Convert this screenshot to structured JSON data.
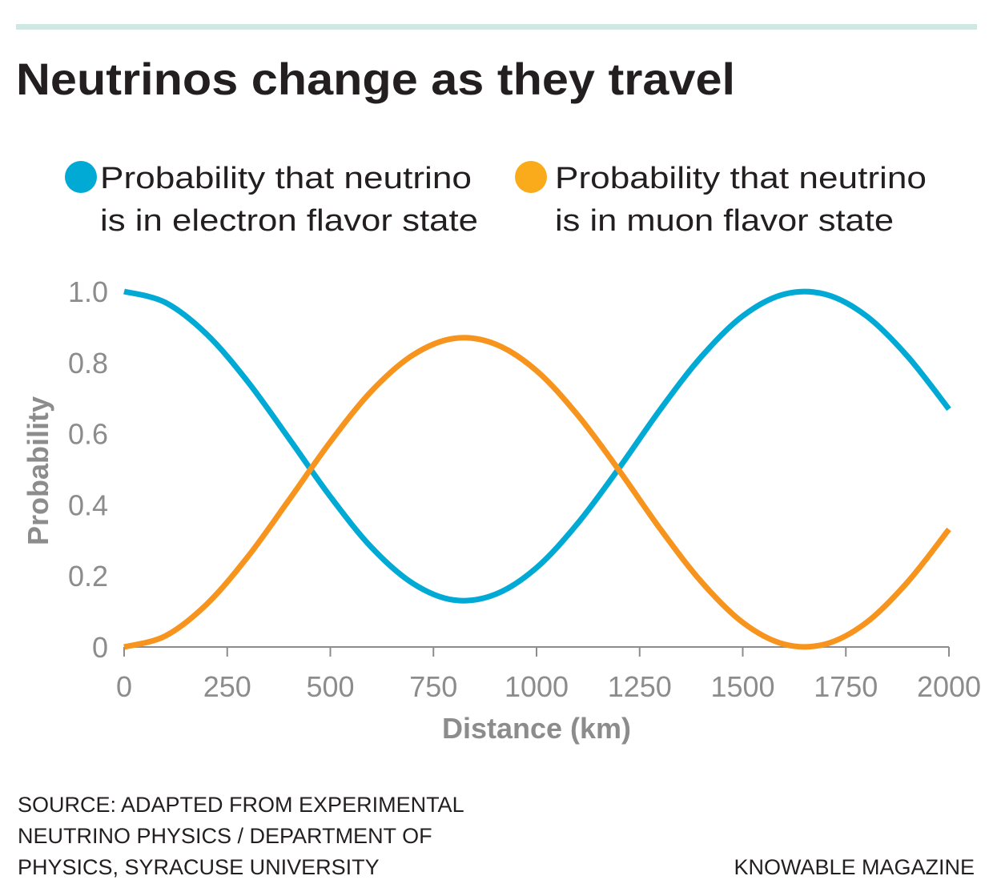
{
  "title": "Neutrinos change as they travel",
  "colors": {
    "top_rule": "#cfe8e3",
    "electron": "#00aad4",
    "muon_line": "#f7941d",
    "muon_dot": "#f9ab1b",
    "axis": "#8c8c8c"
  },
  "legend": [
    {
      "line1": "Probability that neutrino",
      "line2": "is in electron flavor state"
    },
    {
      "line1": "Probability that neutrino",
      "line2": "is in muon flavor state"
    }
  ],
  "chart_data": {
    "type": "line",
    "title": "Neutrinos change as they travel",
    "xlabel": "Distance (km)",
    "ylabel": "Probability",
    "xlim": [
      0,
      2000
    ],
    "ylim": [
      0,
      1.0
    ],
    "xticks": [
      "0",
      "250",
      "500",
      "750",
      "1000",
      "1250",
      "1500",
      "1750",
      "2000"
    ],
    "xtick_values": [
      0,
      250,
      500,
      750,
      1000,
      1250,
      1500,
      1750,
      2000
    ],
    "yticks": [
      "0",
      "0.2",
      "0.4",
      "0.6",
      "0.8",
      "1.0"
    ],
    "ytick_values": [
      0,
      0.2,
      0.4,
      0.6,
      0.8,
      1.0
    ],
    "grid": false,
    "legend_placement": "top",
    "x": [
      0,
      100,
      200,
      300,
      400,
      500,
      600,
      700,
      800,
      900,
      1000,
      1100,
      1200,
      1300,
      1400,
      1500,
      1600,
      1700,
      1800,
      1900,
      2000
    ],
    "series": [
      {
        "name": "Probability that neutrino is in electron flavor state",
        "color": "#00aad4",
        "values": [
          1.0,
          0.969,
          0.88,
          0.746,
          0.586,
          0.423,
          0.28,
          0.179,
          0.132,
          0.148,
          0.223,
          0.348,
          0.503,
          0.668,
          0.817,
          0.931,
          0.992,
          0.992,
          0.931,
          0.817,
          0.669
        ]
      },
      {
        "name": "Probability that neutrino is in muon flavor state",
        "color": "#f7941d",
        "values": [
          0.0,
          0.031,
          0.12,
          0.254,
          0.414,
          0.577,
          0.72,
          0.821,
          0.868,
          0.852,
          0.777,
          0.652,
          0.497,
          0.332,
          0.183,
          0.069,
          0.008,
          0.008,
          0.069,
          0.183,
          0.331
        ]
      }
    ]
  },
  "footer": {
    "source_lines": [
      "SOURCE: ADAPTED FROM EXPERIMENTAL",
      "NEUTRINO PHYSICS / DEPARTMENT OF",
      "PHYSICS, SYRACUSE UNIVERSITY"
    ],
    "credit": "KNOWABLE MAGAZINE"
  }
}
